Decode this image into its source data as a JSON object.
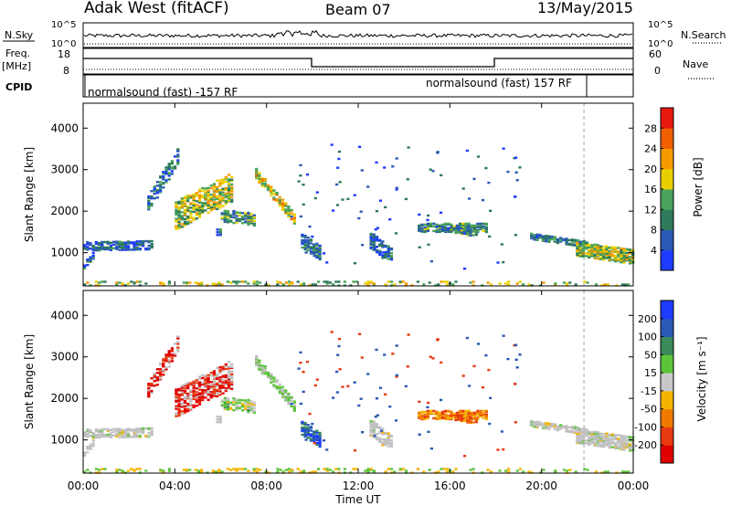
{
  "header": {
    "station": "Adak West (fitACF)",
    "beam": "Beam 07",
    "date": "13/May/2015"
  },
  "left_labels": {
    "nsky": "N.Sky",
    "freq_line1": "Freq.",
    "freq_line2": "[MHz]",
    "cpid": "CPID"
  },
  "right_labels": {
    "nsearch": "N.Search",
    "nave": "Nave"
  },
  "noise_panel": {
    "left_ticks": [
      "10^5",
      "10^0"
    ],
    "right_ticks": [
      "10^5",
      "10^0"
    ]
  },
  "freq_panel": {
    "left_ticks": [
      "18",
      "8"
    ],
    "right_ticks": [
      "60",
      "0"
    ]
  },
  "cpid_panel": {
    "segment1": "normalsound (fast) -157 RF",
    "segment2": "normalsound (fast) 157 RF"
  },
  "colors": {
    "power_scale": [
      "#1e3cff",
      "#2a5ab4",
      "#2e7a5a",
      "#4aa35a",
      "#e8d000",
      "#f59a00",
      "#f06000",
      "#e81a10"
    ],
    "velocity_scale": [
      "#1e3cff",
      "#2a5ab4",
      "#3a8a5a",
      "#5cc43a",
      "#c8c8c8",
      "#f5b400",
      "#f07a00",
      "#e83a10",
      "#e00000"
    ],
    "scatter_grey": "#c0c0c0"
  },
  "chart_data": [
    {
      "type": "heatmap",
      "title": "",
      "ylabel": "Slant Range [km]",
      "ylim": [
        200,
        4600
      ],
      "yticks": [
        "4000",
        "3000",
        "2000",
        "1000"
      ],
      "xlim_hours": [
        0,
        24
      ],
      "colorbar_label": "Power [dB]",
      "colorbar_ticks": [
        "28",
        "24",
        "20",
        "16",
        "12",
        "8",
        "4"
      ],
      "colorbar_range": [
        0,
        30
      ],
      "dashed_line_hour": 21.85
    },
    {
      "type": "heatmap",
      "title": "",
      "ylabel": "Slant Range [km]",
      "ylim": [
        200,
        4600
      ],
      "yticks": [
        "4000",
        "3000",
        "2000",
        "1000"
      ],
      "xlim_hours": [
        0,
        24
      ],
      "colorbar_label": "Velocity [m s⁻¹]",
      "colorbar_ticks": [
        "200",
        "100",
        "50",
        "15",
        "-15",
        "-50",
        "-100",
        "-200"
      ],
      "colorbar_range": [
        -250,
        250
      ],
      "dashed_line_hour": 21.85
    }
  ],
  "x_axis": {
    "ticks": [
      "00:00",
      "04:00",
      "08:00",
      "12:00",
      "16:00",
      "20:00",
      "00:00"
    ],
    "label": "Time UT"
  }
}
